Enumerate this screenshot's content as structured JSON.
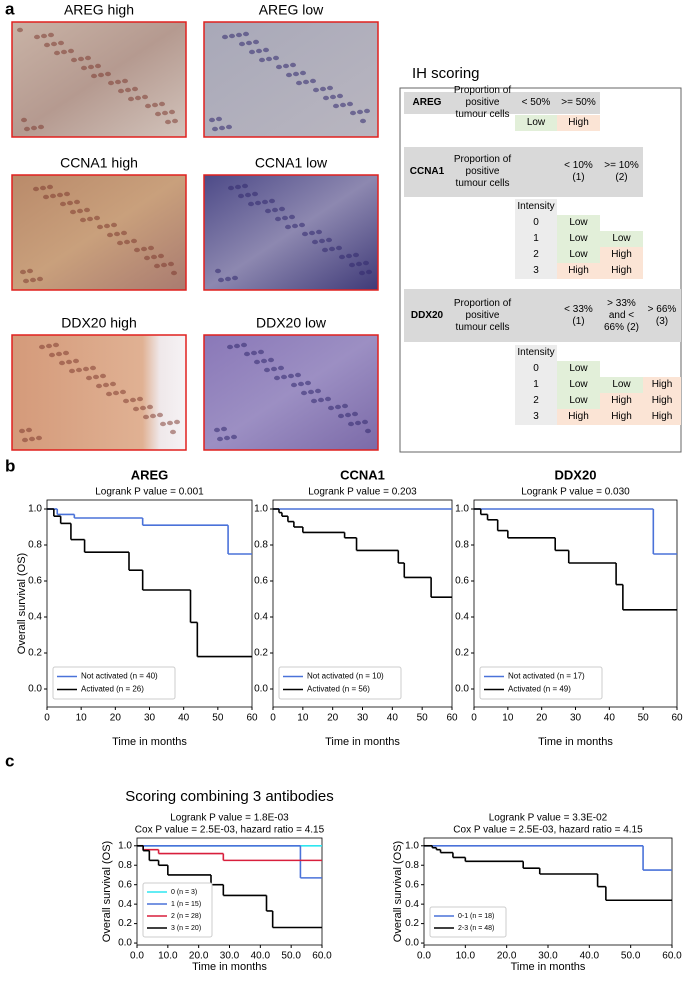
{
  "panel_labels": [
    "a",
    "b",
    "c"
  ],
  "image_labels": [
    "AREG high",
    "AREG low",
    "CCNA1 high",
    "CCNA1 low",
    "DDX20 high",
    "DDX20 low"
  ],
  "ih_scoring": {
    "title": "IH scoring",
    "intensity_header": "Intensity",
    "blocks": [
      {
        "marker": "AREG",
        "measure": "Proportion of positive tumour cells",
        "columns": [
          "< 50%",
          ">= 50%"
        ],
        "rows": [
          {
            "cells": [
              "Low",
              "High"
            ]
          }
        ]
      },
      {
        "marker": "CCNA1",
        "measure": "Proportion of positive tumour cells",
        "columns": [
          "< 10% (1)",
          ">= 10% (2)"
        ],
        "rows": [
          {
            "intensity": 0,
            "cells": [
              "Low"
            ]
          },
          {
            "intensity": 1,
            "cells": [
              "Low",
              "Low"
            ]
          },
          {
            "intensity": 2,
            "cells": [
              "Low",
              "High"
            ]
          },
          {
            "intensity": 3,
            "cells": [
              "High",
              "High"
            ]
          }
        ]
      },
      {
        "marker": "DDX20",
        "measure": "Proportion of positive tumour cells",
        "columns": [
          "< 33% (1)",
          "> 33% and < 66% (2)",
          "> 66% (3)"
        ],
        "rows": [
          {
            "intensity": 0,
            "cells": [
              "Low"
            ]
          },
          {
            "intensity": 1,
            "cells": [
              "Low",
              "Low",
              "High"
            ]
          },
          {
            "intensity": 2,
            "cells": [
              "Low",
              "High",
              "High"
            ]
          },
          {
            "intensity": 3,
            "cells": [
              "High",
              "High",
              "High"
            ]
          }
        ]
      }
    ]
  },
  "chart_data": [
    {
      "type": "line",
      "step": "post",
      "title": "AREG",
      "subtitle": [
        "Logrank P value = 0.001"
      ],
      "xlabel": "Time in months",
      "ylabel": "Overall survival (OS)",
      "xlim": [
        0,
        60
      ],
      "xticks": [
        0,
        10,
        20,
        30,
        40,
        50,
        60
      ],
      "ylim": [
        -0.1,
        1.05
      ],
      "yticks": [
        {
          "value": 0,
          "label": "0.0"
        },
        0.2,
        0.4,
        0.6,
        0.8,
        {
          "value": 1,
          "label": "1.0"
        }
      ],
      "legend": "lower left",
      "series": [
        {
          "name": "Not activated (n = 40)",
          "color": "#4a72d9",
          "x": [
            0,
            3,
            8,
            28,
            53,
            60
          ],
          "values": [
            1,
            0.97,
            0.95,
            0.91,
            0.75,
            0.75
          ]
        },
        {
          "name": "Activated (n = 26)",
          "color": "#000000",
          "x": [
            0,
            2,
            4,
            7,
            11,
            24,
            28,
            42,
            44,
            60
          ],
          "values": [
            1,
            0.96,
            0.92,
            0.83,
            0.76,
            0.66,
            0.55,
            0.37,
            0.18,
            0.18
          ]
        }
      ]
    },
    {
      "type": "line",
      "step": "post",
      "title": "CCNA1",
      "subtitle": [
        "Logrank P value = 0.203"
      ],
      "xlabel": "Time in months",
      "xlim": [
        0,
        60
      ],
      "xticks": [
        0,
        10,
        20,
        30,
        40,
        50,
        60
      ],
      "ylim": [
        -0.1,
        1.05
      ],
      "yticks": [
        {
          "value": 0,
          "label": "0.0"
        },
        0.2,
        0.4,
        0.6,
        0.8,
        {
          "value": 1,
          "label": "1.0"
        }
      ],
      "legend": "lower left",
      "series": [
        {
          "name": "Not activated (n = 10)",
          "color": "#4a72d9",
          "x": [
            0,
            60
          ],
          "values": [
            1,
            1
          ]
        },
        {
          "name": "Activated (n = 56)",
          "color": "#000000",
          "x": [
            0,
            2,
            3,
            5,
            7,
            10,
            24,
            28,
            42,
            44,
            53,
            60
          ],
          "values": [
            1,
            0.98,
            0.96,
            0.93,
            0.9,
            0.87,
            0.84,
            0.77,
            0.7,
            0.62,
            0.51,
            0.51
          ]
        }
      ]
    },
    {
      "type": "line",
      "step": "post",
      "title": "DDX20",
      "subtitle": [
        "Logrank P value = 0.030"
      ],
      "xlabel": "Time in months",
      "xlim": [
        0,
        60
      ],
      "xticks": [
        0,
        10,
        20,
        30,
        40,
        50,
        60
      ],
      "ylim": [
        -0.1,
        1.05
      ],
      "yticks": [
        {
          "value": 0,
          "label": "0.0"
        },
        0.2,
        0.4,
        0.6,
        0.8,
        {
          "value": 1,
          "label": "1.0"
        }
      ],
      "legend": "lower left",
      "series": [
        {
          "name": "Not activated (n = 17)",
          "color": "#4a72d9",
          "x": [
            0,
            53,
            60
          ],
          "values": [
            1,
            0.75,
            0.75
          ]
        },
        {
          "name": "Activated (n = 49)",
          "color": "#000000",
          "x": [
            0,
            2,
            4,
            7,
            10,
            24,
            28,
            42,
            44,
            60
          ],
          "values": [
            1,
            0.97,
            0.94,
            0.88,
            0.84,
            0.77,
            0.7,
            0.58,
            0.44,
            0.44
          ]
        }
      ]
    },
    {
      "type": "line",
      "step": "post",
      "title": "Scoring combining 3 antibodies",
      "subtitle": [
        "Logrank P value = 1.8E-03",
        "Cox P value = 2.5E-03, hazard ratio = 4.15"
      ],
      "xlabel": "Time in months",
      "ylabel": "Overall survival (OS)",
      "xlim": [
        0,
        60
      ],
      "xticks": [
        {
          "value": 0,
          "label": "0.0"
        },
        {
          "value": 10,
          "label": "10.0"
        },
        {
          "value": 20,
          "label": "20.0"
        },
        {
          "value": 30,
          "label": "30.0"
        },
        {
          "value": 40,
          "label": "40.0"
        },
        {
          "value": 50,
          "label": "50.0"
        },
        {
          "value": 60,
          "label": "60.0"
        }
      ],
      "ylim": [
        -0.02,
        1.08
      ],
      "yticks": [
        {
          "value": 0,
          "label": "0.0"
        },
        0.2,
        0.4,
        0.6,
        0.8,
        {
          "value": 1,
          "label": "1.0"
        }
      ],
      "legend": "lower left",
      "series": [
        {
          "name": "0 (n = 3)",
          "color": "#2ee6f0",
          "x": [
            0,
            60
          ],
          "values": [
            1,
            1
          ]
        },
        {
          "name": "1 (n = 15)",
          "color": "#4a72d9",
          "x": [
            0,
            53,
            60
          ],
          "values": [
            1,
            0.67,
            0.67
          ]
        },
        {
          "name": "2 (n = 28)",
          "color": "#d81f3c",
          "x": [
            0,
            2,
            7,
            28,
            60
          ],
          "values": [
            1,
            0.96,
            0.92,
            0.85,
            0.85
          ]
        },
        {
          "name": "3 (n = 20)",
          "color": "#000000",
          "x": [
            0,
            2,
            4,
            7,
            10,
            24,
            28,
            42,
            44,
            60
          ],
          "values": [
            1,
            0.95,
            0.85,
            0.8,
            0.7,
            0.6,
            0.49,
            0.33,
            0.16,
            0.16
          ]
        }
      ]
    },
    {
      "type": "line",
      "step": "post",
      "subtitle": [
        "Logrank P value = 3.3E-02",
        "Cox P value = 2.5E-03, hazard ratio = 4.15"
      ],
      "xlabel": "Time in months",
      "ylabel": "Overall survival (OS)",
      "xlim": [
        0,
        60
      ],
      "xticks": [
        {
          "value": 0,
          "label": "0.0"
        },
        {
          "value": 10,
          "label": "10.0"
        },
        {
          "value": 20,
          "label": "20.0"
        },
        {
          "value": 30,
          "label": "30.0"
        },
        {
          "value": 40,
          "label": "40.0"
        },
        {
          "value": 50,
          "label": "50.0"
        },
        {
          "value": 60,
          "label": "60.0"
        }
      ],
      "ylim": [
        -0.02,
        1.08
      ],
      "yticks": [
        {
          "value": 0,
          "label": "0.0"
        },
        0.2,
        0.4,
        0.6,
        0.8,
        {
          "value": 1,
          "label": "1.0"
        }
      ],
      "legend": "lower left",
      "series": [
        {
          "name": "0-1 (n = 18)",
          "color": "#4a72d9",
          "x": [
            0,
            53,
            60
          ],
          "values": [
            1,
            0.75,
            0.75
          ]
        },
        {
          "name": "2-3 (n = 48)",
          "color": "#000000",
          "x": [
            0,
            2,
            3,
            4,
            7,
            10,
            24,
            28,
            42,
            44,
            60
          ],
          "values": [
            1,
            0.98,
            0.96,
            0.93,
            0.88,
            0.84,
            0.77,
            0.71,
            0.58,
            0.44,
            0.44
          ]
        }
      ]
    }
  ]
}
